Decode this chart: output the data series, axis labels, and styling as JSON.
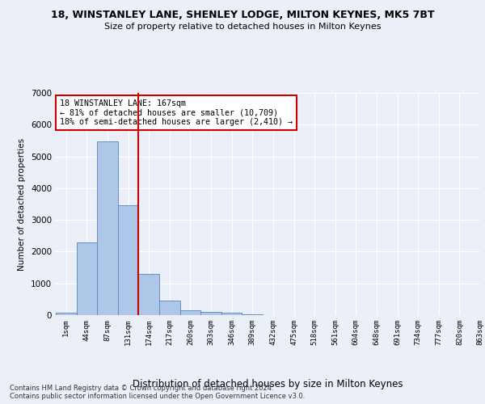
{
  "title": "18, WINSTANLEY LANE, SHENLEY LODGE, MILTON KEYNES, MK5 7BT",
  "subtitle": "Size of property relative to detached houses in Milton Keynes",
  "xlabel": "Distribution of detached houses by size in Milton Keynes",
  "ylabel": "Number of detached properties",
  "bin_labels": [
    "1sqm",
    "44sqm",
    "87sqm",
    "131sqm",
    "174sqm",
    "217sqm",
    "260sqm",
    "303sqm",
    "346sqm",
    "389sqm",
    "432sqm",
    "475sqm",
    "518sqm",
    "561sqm",
    "604sqm",
    "648sqm",
    "691sqm",
    "734sqm",
    "777sqm",
    "820sqm",
    "863sqm"
  ],
  "bar_values": [
    75,
    2280,
    5470,
    3450,
    1310,
    470,
    160,
    100,
    65,
    35,
    0,
    0,
    0,
    0,
    0,
    0,
    0,
    0,
    0,
    0
  ],
  "bar_color": "#aec6e8",
  "bar_edge_color": "#5588bb",
  "vline_x": 4.0,
  "vline_color": "#cc0000",
  "ylim": [
    0,
    7000
  ],
  "annotation_text": "18 WINSTANLEY LANE: 167sqm\n← 81% of detached houses are smaller (10,709)\n18% of semi-detached houses are larger (2,410) →",
  "annotation_box_color": "#cc0000",
  "footnote": "Contains HM Land Registry data © Crown copyright and database right 2024.\nContains public sector information licensed under the Open Government Licence v3.0.",
  "bg_color": "#eaeff8",
  "plot_bg_color": "#eaeff8",
  "title_fontsize": 9,
  "subtitle_fontsize": 8.5
}
